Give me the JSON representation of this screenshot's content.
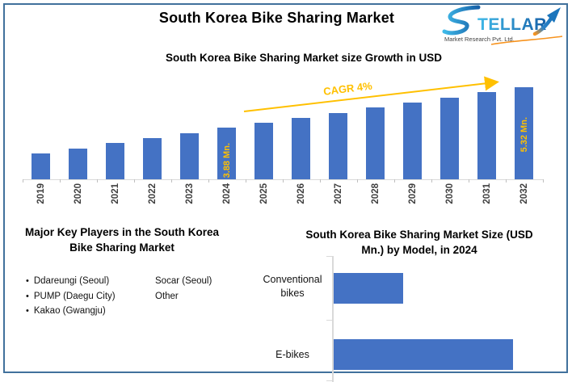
{
  "window": {
    "title": "South Korea Bike Sharing Market"
  },
  "logo": {
    "brand": "STELLAR",
    "brand_rest": "TELLAR",
    "tagline": "Market Research Pvt. Ltd."
  },
  "key_players": {
    "title_line1": "Major Key Players in the South Korea",
    "title_line2": "Bike Sharing Market",
    "column1": [
      "Ddareungi (Seoul)",
      "PUMP (Daegu City)",
      "Kakao (Gwangju)"
    ],
    "column2": [
      "Socar (Seoul)",
      "Other"
    ]
  },
  "colors": {
    "bar": "#4472C4",
    "accent_gold": "#FFC000",
    "frame": "#41719C"
  },
  "chart_data": [
    {
      "id": "growth",
      "type": "bar",
      "title": "South Korea Bike Sharing Market size Growth in USD",
      "categories": [
        "2019",
        "2020",
        "2021",
        "2022",
        "2023",
        "2024",
        "2025",
        "2026",
        "2027",
        "2028",
        "2029",
        "2030",
        "2031",
        "2032"
      ],
      "values": [
        2.98,
        3.16,
        3.34,
        3.52,
        3.7,
        3.88,
        4.06,
        4.24,
        4.42,
        4.6,
        4.78,
        4.96,
        5.14,
        5.32
      ],
      "unit": "USD Mn.",
      "xlabel": "",
      "ylabel": "",
      "ylim": [
        2.07,
        5.7
      ],
      "value_axis_visible": false,
      "grid": false,
      "bar_color": "#4472C4",
      "data_labels": [
        {
          "category": "2024",
          "text": "3.88 Mn."
        },
        {
          "category": "2032",
          "text": "5.32 Mn."
        }
      ],
      "annotation": {
        "text": "CAGR 4%",
        "color": "#FFC000"
      }
    },
    {
      "id": "by_model",
      "type": "bar-horizontal",
      "title": "South Korea Bike Sharing Market Size (USD Mn.) by Model, in 2024",
      "title_line1": "South Korea Bike Sharing Market Size (USD",
      "title_line2": "Mn.) by Model, in 2024",
      "categories": [
        "Conventional bikes",
        "E-bikes"
      ],
      "values": [
        1.08,
        2.8
      ],
      "unit": "USD Mn.",
      "xlim": [
        0,
        2.9
      ],
      "value_axis_visible": false,
      "grid": false,
      "bar_color": "#4472C4"
    }
  ]
}
